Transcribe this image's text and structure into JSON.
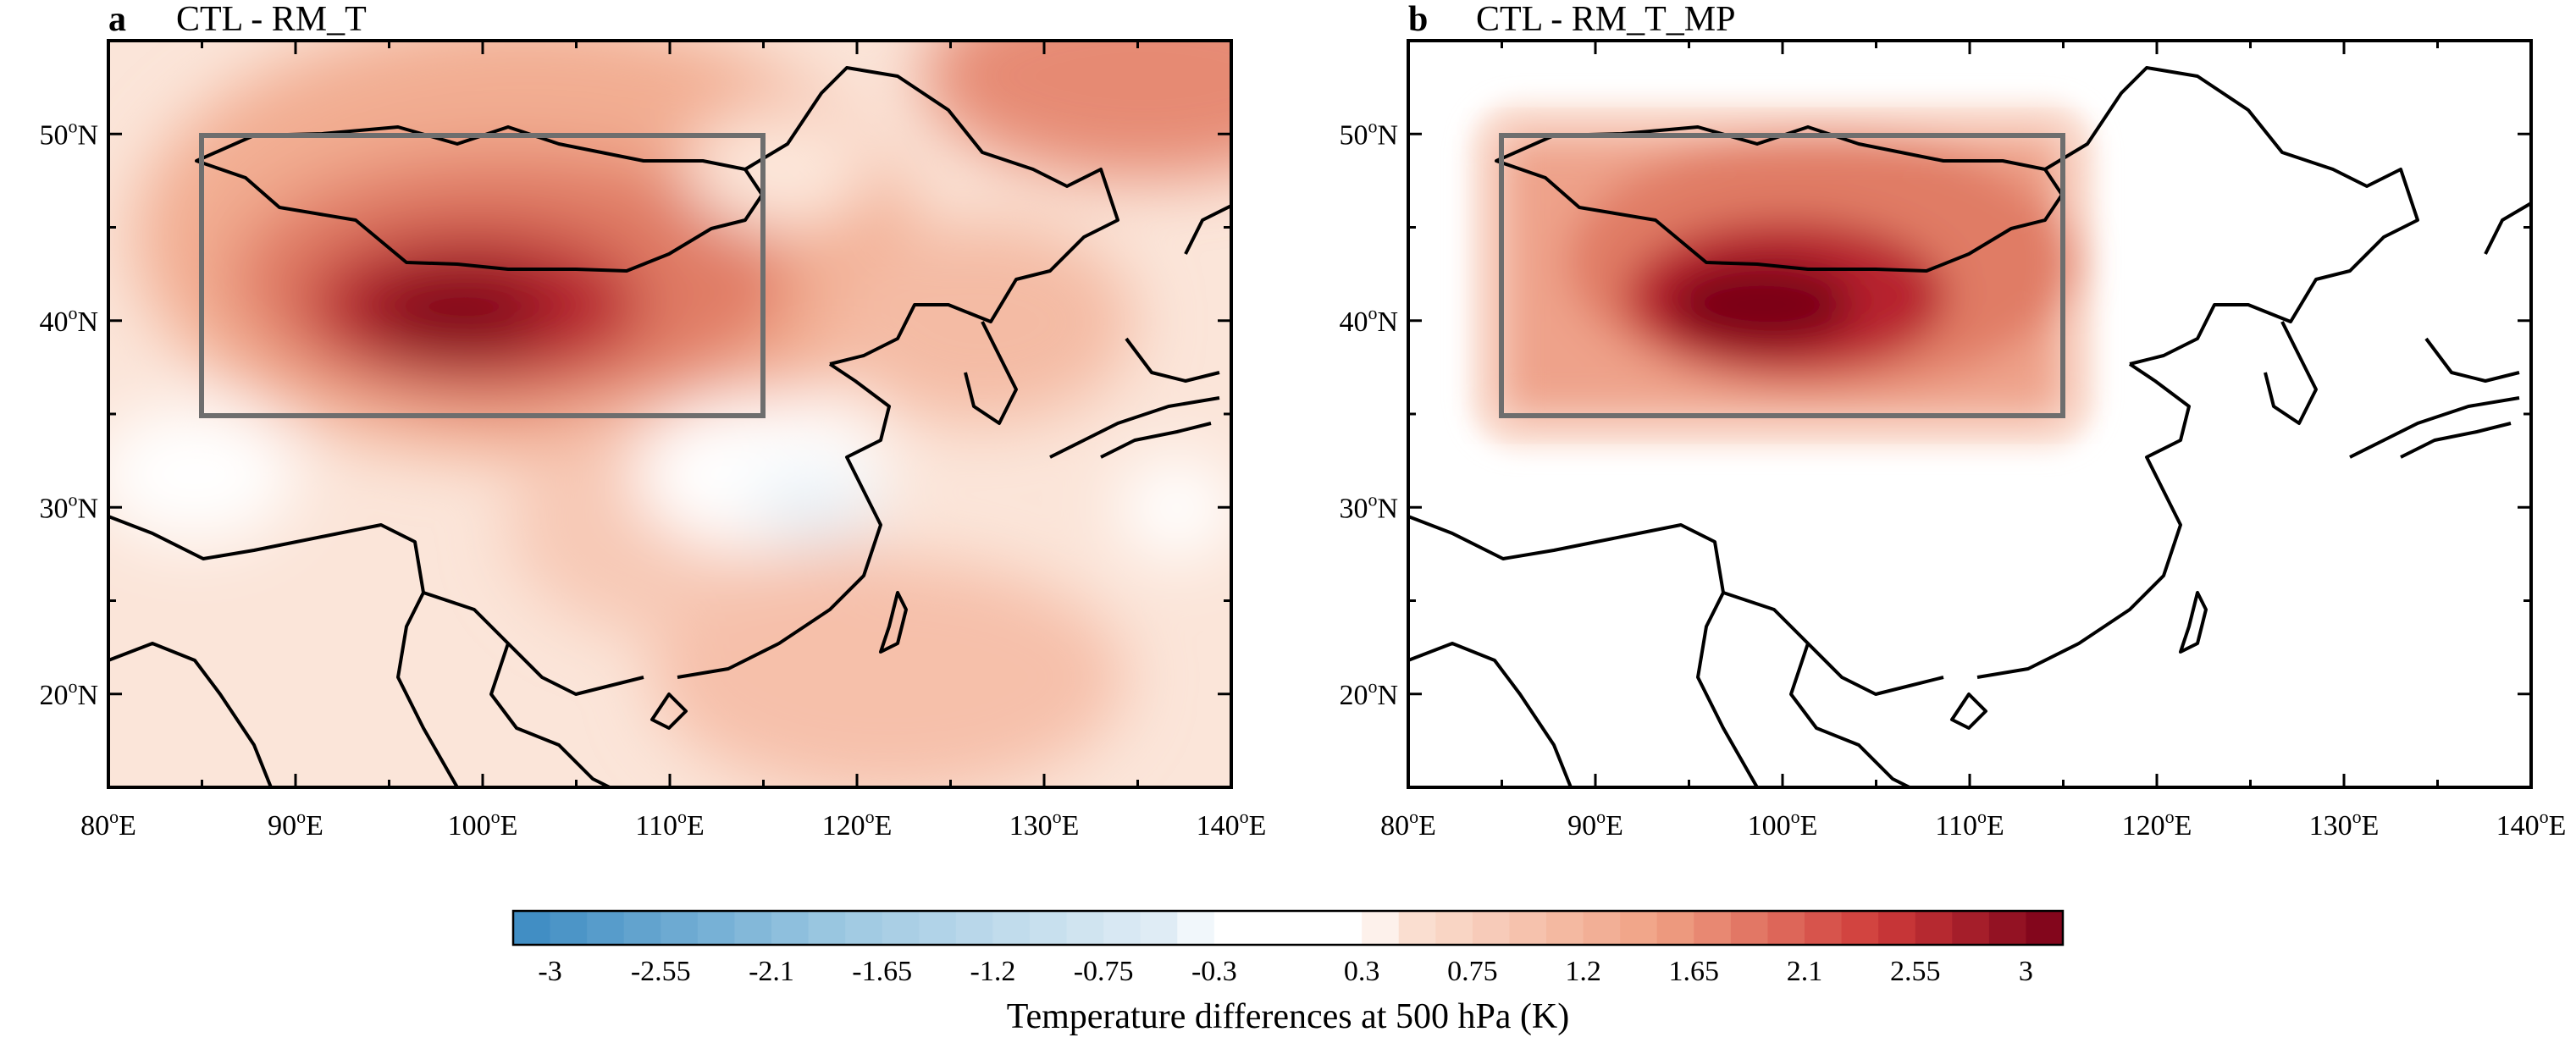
{
  "panels": [
    {
      "letter": "a",
      "title": "CTL - RM_T",
      "lon_range": [
        80,
        140
      ],
      "lat_range": [
        15,
        55
      ],
      "region_box": {
        "lon": [
          85,
          115
        ],
        "lat": [
          35,
          50
        ]
      },
      "field": "full",
      "x_ticks": [
        {
          "value": 80,
          "label": "80",
          "unit": "E"
        },
        {
          "value": 90,
          "label": "90",
          "unit": "E"
        },
        {
          "value": 100,
          "label": "100",
          "unit": "E"
        },
        {
          "value": 110,
          "label": "110",
          "unit": "E"
        },
        {
          "value": 120,
          "label": "120",
          "unit": "E"
        },
        {
          "value": 130,
          "label": "130",
          "unit": "E"
        },
        {
          "value": 140,
          "label": "140",
          "unit": "E"
        }
      ],
      "y_ticks": [
        {
          "value": 20,
          "label": "20",
          "unit": "N"
        },
        {
          "value": 30,
          "label": "30",
          "unit": "N"
        },
        {
          "value": 40,
          "label": "40",
          "unit": "N"
        },
        {
          "value": 50,
          "label": "50",
          "unit": "N"
        }
      ]
    },
    {
      "letter": "b",
      "title": "CTL - RM_T_MP",
      "lon_range": [
        80,
        140
      ],
      "lat_range": [
        15,
        55
      ],
      "region_box": {
        "lon": [
          85,
          115
        ],
        "lat": [
          35,
          50
        ]
      },
      "field": "masked",
      "x_ticks": [
        {
          "value": 80,
          "label": "80",
          "unit": "E"
        },
        {
          "value": 90,
          "label": "90",
          "unit": "E"
        },
        {
          "value": 100,
          "label": "100",
          "unit": "E"
        },
        {
          "value": 110,
          "label": "110",
          "unit": "E"
        },
        {
          "value": 120,
          "label": "120",
          "unit": "E"
        },
        {
          "value": 130,
          "label": "130",
          "unit": "E"
        },
        {
          "value": 140,
          "label": "140",
          "unit": "E"
        }
      ],
      "y_ticks": [
        {
          "value": 20,
          "label": "20",
          "unit": "N"
        },
        {
          "value": 30,
          "label": "30",
          "unit": "N"
        },
        {
          "value": 40,
          "label": "40",
          "unit": "N"
        },
        {
          "value": 50,
          "label": "50",
          "unit": "N"
        }
      ]
    }
  ],
  "degree_symbol": "o",
  "colorbar": {
    "title": "Temperature differences at 500 hPa (K)",
    "min": -3.15,
    "max": 3.15,
    "step": 0.15,
    "labels": [
      "-3",
      "-2.55",
      "-2.1",
      "-1.65",
      "-1.2",
      "-0.75",
      "-0.3",
      "0.3",
      "0.75",
      "1.2",
      "1.65",
      "2.1",
      "2.55",
      "3"
    ],
    "label_values": [
      -3,
      -2.55,
      -2.1,
      -1.65,
      -1.2,
      -0.75,
      -0.3,
      0.3,
      0.75,
      1.2,
      1.65,
      2.1,
      2.55,
      3
    ],
    "colors": {
      "strong_negative": "#3b8bc2",
      "mid_negative": "#9ec9e2",
      "weak_negative": "#e3eef6",
      "neutral": "#ffffff",
      "weak_positive": "#fbe3d6",
      "mid_positive": "#f0a184",
      "strong_positive": "#cf3b3a",
      "max_positive": "#7a0019"
    }
  },
  "colors": {
    "region_box": "#6e6e6e",
    "coastline": "#000000",
    "frame": "#000000"
  }
}
